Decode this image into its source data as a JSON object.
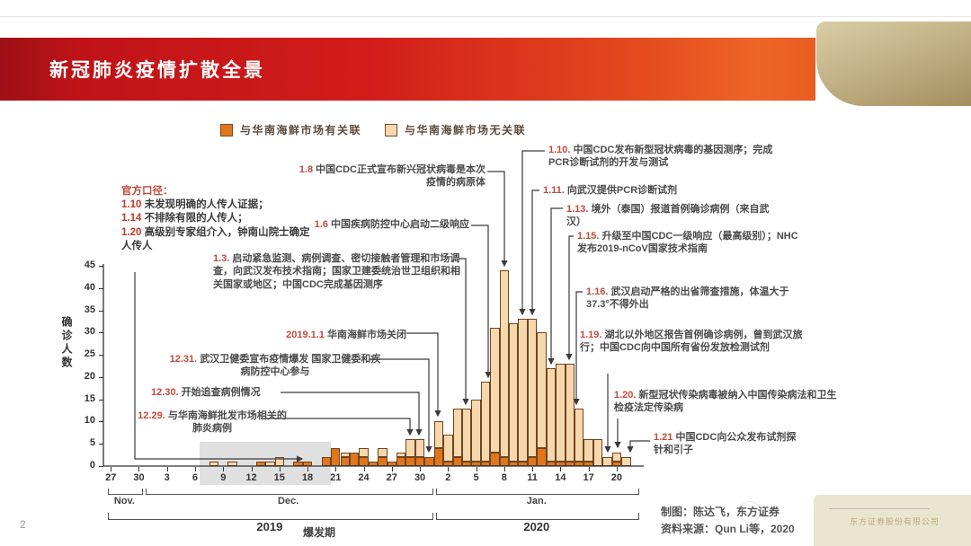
{
  "slide": {
    "title": "新冠肺炎疫情扩散全景",
    "page_number": "2"
  },
  "chart_data": {
    "type": "bar",
    "stacked": true,
    "ylabel": "确诊人数",
    "ylim": [
      0,
      45
    ],
    "yticks": [
      0,
      5,
      10,
      15,
      20,
      25,
      30,
      35,
      40,
      45
    ],
    "x_ticks": [
      {
        "label": "27",
        "day_index": 0
      },
      {
        "label": "30",
        "day_index": 3
      },
      {
        "label": "3",
        "day_index": 6
      },
      {
        "label": "6",
        "day_index": 9
      },
      {
        "label": "9",
        "day_index": 12
      },
      {
        "label": "12",
        "day_index": 15
      },
      {
        "label": "15",
        "day_index": 18
      },
      {
        "label": "18",
        "day_index": 21
      },
      {
        "label": "21",
        "day_index": 24
      },
      {
        "label": "24",
        "day_index": 27
      },
      {
        "label": "27",
        "day_index": 30
      },
      {
        "label": "30",
        "day_index": 33
      },
      {
        "label": "2",
        "day_index": 36
      },
      {
        "label": "5",
        "day_index": 39
      },
      {
        "label": "8",
        "day_index": 42
      },
      {
        "label": "11",
        "day_index": 45
      },
      {
        "label": "14",
        "day_index": 48
      },
      {
        "label": "17",
        "day_index": 51
      },
      {
        "label": "20",
        "day_index": 54
      }
    ],
    "series": [
      {
        "name": "与华南海鲜市场有关联",
        "color": "#e0751c"
      },
      {
        "name": "与华南海鲜市场无关联",
        "color": "#f7d7ad"
      }
    ],
    "bars": [
      {
        "date": "12.8",
        "day_index": 11,
        "market_linked": 0,
        "not_linked": 1
      },
      {
        "date": "12.10",
        "day_index": 13,
        "market_linked": 0,
        "not_linked": 1
      },
      {
        "date": "12.13",
        "day_index": 16,
        "market_linked": 1,
        "not_linked": 0
      },
      {
        "date": "12.14",
        "day_index": 17,
        "market_linked": 0,
        "not_linked": 1
      },
      {
        "date": "12.15",
        "day_index": 18,
        "market_linked": 0,
        "not_linked": 2
      },
      {
        "date": "12.17",
        "day_index": 20,
        "market_linked": 1,
        "not_linked": 0
      },
      {
        "date": "12.18",
        "day_index": 21,
        "market_linked": 1,
        "not_linked": 0
      },
      {
        "date": "12.20",
        "day_index": 23,
        "market_linked": 2,
        "not_linked": 0
      },
      {
        "date": "12.21",
        "day_index": 24,
        "market_linked": 4,
        "not_linked": 0
      },
      {
        "date": "12.22",
        "day_index": 25,
        "market_linked": 2,
        "not_linked": 1
      },
      {
        "date": "12.23",
        "day_index": 26,
        "market_linked": 3,
        "not_linked": 0
      },
      {
        "date": "12.24",
        "day_index": 27,
        "market_linked": 2,
        "not_linked": 2
      },
      {
        "date": "12.25",
        "day_index": 28,
        "market_linked": 1,
        "not_linked": 0
      },
      {
        "date": "12.26",
        "day_index": 29,
        "market_linked": 2,
        "not_linked": 2
      },
      {
        "date": "12.27",
        "day_index": 30,
        "market_linked": 1,
        "not_linked": 0
      },
      {
        "date": "12.28",
        "day_index": 31,
        "market_linked": 2,
        "not_linked": 1
      },
      {
        "date": "12.29",
        "day_index": 32,
        "market_linked": 2,
        "not_linked": 4
      },
      {
        "date": "12.30",
        "day_index": 33,
        "market_linked": 2,
        "not_linked": 4
      },
      {
        "date": "12.31",
        "day_index": 34,
        "market_linked": 2,
        "not_linked": 0
      },
      {
        "date": "1.1",
        "day_index": 35,
        "market_linked": 4,
        "not_linked": 6
      },
      {
        "date": "1.2",
        "day_index": 36,
        "market_linked": 1,
        "not_linked": 6
      },
      {
        "date": "1.3",
        "day_index": 37,
        "market_linked": 2,
        "not_linked": 11
      },
      {
        "date": "1.4",
        "day_index": 38,
        "market_linked": 1,
        "not_linked": 12
      },
      {
        "date": "1.5",
        "day_index": 39,
        "market_linked": 1,
        "not_linked": 14
      },
      {
        "date": "1.6",
        "day_index": 40,
        "market_linked": 1,
        "not_linked": 18
      },
      {
        "date": "1.7",
        "day_index": 41,
        "market_linked": 3,
        "not_linked": 28
      },
      {
        "date": "1.8",
        "day_index": 42,
        "market_linked": 2,
        "not_linked": 42
      },
      {
        "date": "1.9",
        "day_index": 43,
        "market_linked": 1,
        "not_linked": 31
      },
      {
        "date": "1.10",
        "day_index": 44,
        "market_linked": 1,
        "not_linked": 32
      },
      {
        "date": "1.11",
        "day_index": 45,
        "market_linked": 2,
        "not_linked": 31
      },
      {
        "date": "1.12",
        "day_index": 46,
        "market_linked": 4,
        "not_linked": 26
      },
      {
        "date": "1.13",
        "day_index": 47,
        "market_linked": 1,
        "not_linked": 21
      },
      {
        "date": "1.14",
        "day_index": 48,
        "market_linked": 1,
        "not_linked": 22
      },
      {
        "date": "1.15",
        "day_index": 49,
        "market_linked": 1,
        "not_linked": 22
      },
      {
        "date": "1.16",
        "day_index": 50,
        "market_linked": 1,
        "not_linked": 12
      },
      {
        "date": "1.17",
        "day_index": 51,
        "market_linked": 1,
        "not_linked": 5
      },
      {
        "date": "1.18",
        "day_index": 52,
        "market_linked": 0,
        "not_linked": 6
      },
      {
        "date": "1.19",
        "day_index": 53,
        "market_linked": 0,
        "not_linked": 2
      },
      {
        "date": "1.20",
        "day_index": 54,
        "market_linked": 1,
        "not_linked": 2
      },
      {
        "date": "1.21",
        "day_index": 55,
        "market_linked": 0,
        "not_linked": 2
      }
    ],
    "month_brackets": [
      {
        "label": "Nov.",
        "from_index": 0,
        "to_index": 3
      },
      {
        "label": "Dec.",
        "from_index": 4,
        "to_index": 34
      },
      {
        "label": "Jan.",
        "from_index": 35,
        "to_index": 56
      }
    ],
    "year_brackets": [
      {
        "label": "2019",
        "from_index": 0,
        "to_index": 34
      },
      {
        "label": "2020",
        "from_index": 35,
        "to_index": 56
      }
    ],
    "outbreak_label": "爆发期",
    "highlight_span": {
      "from_index": 10,
      "to_index": 24
    }
  },
  "official": {
    "heading": "官方口径：",
    "items": [
      {
        "date": "1.10",
        "text": "未发现明确的人传人证据；"
      },
      {
        "date": "1.14",
        "text": "不排除有限的人传人；"
      },
      {
        "date": "1.20",
        "text": "高级别专家组介入，钟南山院士确定人传人"
      }
    ]
  },
  "annotations": {
    "a18": {
      "date": "1.8",
      "text": "中国CDC正式宣布新兴冠状病毒是本次疫情的病原体"
    },
    "a16": {
      "date": "1.6",
      "text": "中国疾病防控中心启动二级响应"
    },
    "a13": {
      "date": "1.3.",
      "text": "启动紧急监测、病例调查、密切接触者管理和市场调查，向武汉发布技术指南；国家卫建委统治世卫组织和相关国家或地区；中国CDC完成基因测序"
    },
    "a11": {
      "date": "2019.1.1",
      "text": "华南海鲜市场关闭"
    },
    "a1231": {
      "date": "12.31.",
      "text": "武汉卫健委宣布疫情爆发 国家卫健委和疾病防控中心参与"
    },
    "a1230": {
      "date": "12.30.",
      "text": "开始追查病例情况"
    },
    "a1229": {
      "date": "12.29.",
      "text": "与华南海鲜批发市场相关的肺炎病例"
    },
    "a110": {
      "date": "1.10.",
      "text": "中国CDC发布新型冠状病毒的基因测序；完成PCR诊断试剂的开发与测试"
    },
    "a111": {
      "date": "1.11.",
      "text": "向武汉提供PCR诊断试剂"
    },
    "a113": {
      "date": "1.13.",
      "text": "境外（泰国）报道首例确诊病例（来自武汉）"
    },
    "a115": {
      "date": "1.15.",
      "text": "升级至中国CDC一级响应（最高级别）；NHC发布2019-nCoV国家技术指南"
    },
    "a116": {
      "date": "1.16.",
      "text": "武汉启动严格的出省筛查措施，体温大于37.3°不得外出"
    },
    "a119": {
      "date": "1.19.",
      "text": "湖北以外地区报告首例确诊病例，曾到武汉旅行；中国CDC向中国所有省份发放检测试剂"
    },
    "a120": {
      "date": "1.20.",
      "text": "新型冠状传染病毒被纳入中国传染病法和卫生检疫法定传染病"
    },
    "a121": {
      "date": "1.21",
      "text": "中国CDC向公众发布试剂探针和引子"
    }
  },
  "footer": {
    "credit_line1": "制图：陈达飞，东方证券",
    "credit_line2": "资料来源：Qun Li等，2020",
    "watermark": "东方证券股份有限公司"
  }
}
